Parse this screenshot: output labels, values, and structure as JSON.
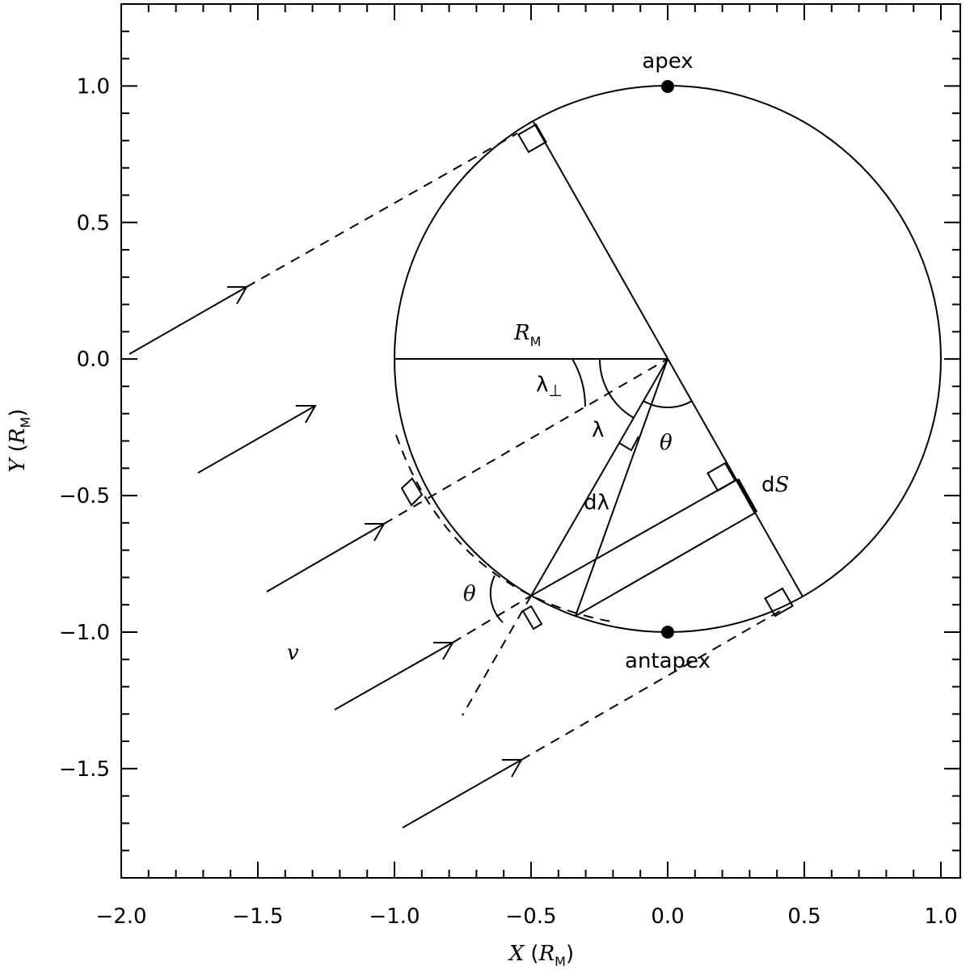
{
  "axes": {
    "xlim": [
      -2.0,
      1.071
    ],
    "ylim": [
      -1.9,
      1.3
    ],
    "xticks": [
      {
        "value": -2,
        "label": "−2.0"
      },
      {
        "value": -1.5,
        "label": "−1.5"
      },
      {
        "value": -1,
        "label": "−1.0"
      },
      {
        "value": -0.5,
        "label": "−0.5"
      },
      {
        "value": 0,
        "label": "0.0"
      },
      {
        "value": 0.5,
        "label": "0.5"
      },
      {
        "value": 1,
        "label": "1.0"
      }
    ],
    "yticks": [
      {
        "value": -1.5,
        "label": "−1.5"
      },
      {
        "value": -1,
        "label": "−1.0"
      },
      {
        "value": -0.5,
        "label": "−0.5"
      },
      {
        "value": 0,
        "label": "0.0"
      },
      {
        "value": 0.5,
        "label": "0.5"
      },
      {
        "value": 1,
        "label": "1.0"
      }
    ],
    "xminorticks": [
      -1.9,
      -1.8,
      -1.7,
      -1.6,
      -1.4,
      -1.3,
      -1.2,
      -1.1,
      -0.9,
      -0.8,
      -0.7,
      -0.6,
      -0.4,
      -0.3,
      -0.2,
      -0.1,
      0.1,
      0.2,
      0.3,
      0.4,
      0.6,
      0.7,
      0.8,
      0.9
    ],
    "yminorticks": [
      -1.8,
      -1.7,
      -1.6,
      -1.4,
      -1.3,
      -1.2,
      -1.1,
      -0.9,
      -0.8,
      -0.7,
      -0.6,
      -0.4,
      -0.3,
      -0.2,
      -0.1,
      0.1,
      0.2,
      0.3,
      0.4,
      0.6,
      0.7,
      0.8,
      0.9,
      1.1,
      1.2
    ],
    "xlabel": {
      "symbol": "X",
      "open": "(",
      "unit": "R",
      "sub": "M",
      "close": ")"
    },
    "ylabel": {
      "symbol": "Y",
      "open": "(",
      "unit": "R",
      "sub": "M",
      "close": ")"
    }
  },
  "labels": {
    "apex": "apex",
    "antapex": "antapex",
    "radius": {
      "symbol": "R",
      "sub": "M"
    },
    "lambda_perp": {
      "symbol": "λ",
      "sub": "⊥"
    },
    "lambda": "λ",
    "theta": "θ",
    "d_lambda": "dλ",
    "dS": {
      "prefix": "d",
      "symbol": "S"
    },
    "theta2": "θ",
    "velocity": "v"
  }
}
